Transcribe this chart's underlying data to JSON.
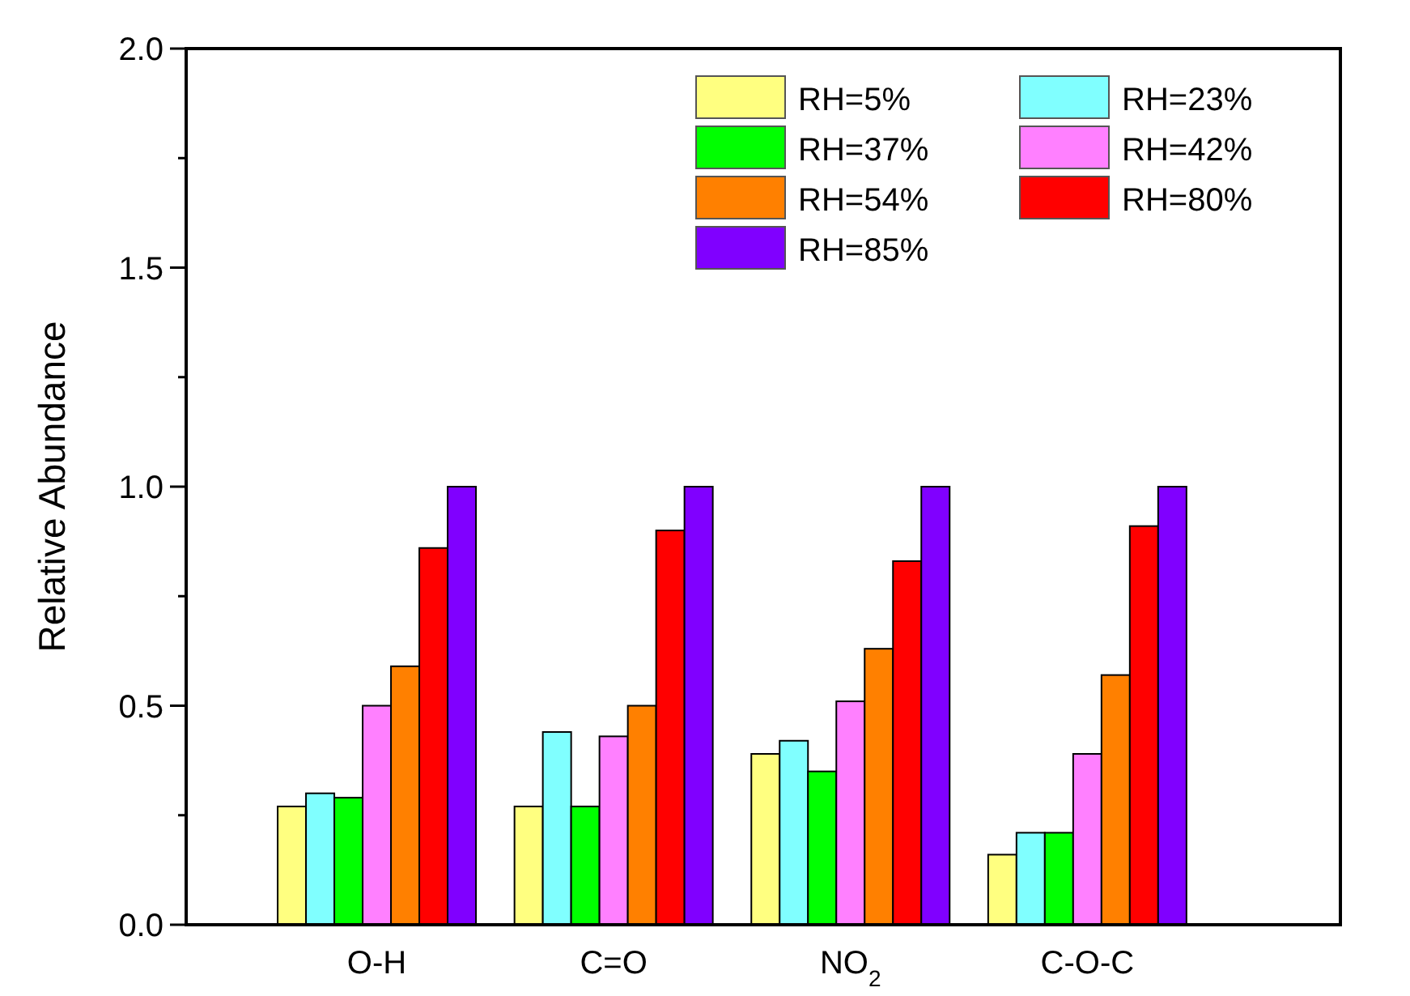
{
  "chart_data": {
    "type": "bar",
    "ylabel": "Relative Abundance",
    "categories": [
      "O-H",
      "C=O",
      "NO$_{2}$",
      "C-O-C"
    ],
    "series": [
      {
        "name": "RH=5%",
        "color": "#ffff80",
        "values": [
          0.27,
          0.27,
          0.39,
          0.16
        ]
      },
      {
        "name": "RH=23%",
        "color": "#80ffff",
        "values": [
          0.3,
          0.44,
          0.42,
          0.21
        ]
      },
      {
        "name": "RH=37%",
        "color": "#00ff00",
        "values": [
          0.29,
          0.27,
          0.35,
          0.21
        ]
      },
      {
        "name": "RH=42%",
        "color": "#ff80ff",
        "values": [
          0.5,
          0.43,
          0.51,
          0.39
        ]
      },
      {
        "name": "RH=54%",
        "color": "#ff8000",
        "values": [
          0.59,
          0.5,
          0.63,
          0.57
        ]
      },
      {
        "name": "RH=80%",
        "color": "#ff0000",
        "values": [
          0.86,
          0.9,
          0.83,
          0.91
        ]
      },
      {
        "name": "RH=85%",
        "color": "#8000ff",
        "values": [
          1.0,
          1.0,
          1.0,
          1.0
        ]
      }
    ],
    "ylim": [
      0,
      2.0
    ],
    "yticks": [
      {
        "value": 0,
        "label": "0.0"
      },
      {
        "value": 0.25,
        "label": null
      },
      {
        "value": 0.5,
        "label": "0.5"
      },
      {
        "value": 0.75,
        "label": null
      },
      {
        "value": 1.0,
        "label": "1.0"
      },
      {
        "value": 1.25,
        "label": null
      },
      {
        "value": 1.5,
        "label": "1.5"
      },
      {
        "value": 1.75,
        "label": null
      },
      {
        "value": 2.0,
        "label": "2.0"
      }
    ],
    "legend": "top right",
    "grid": false
  }
}
